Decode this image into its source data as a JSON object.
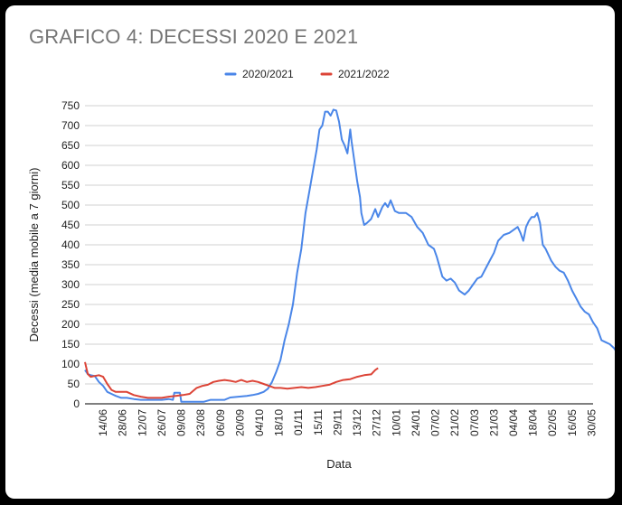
{
  "chart_data": {
    "type": "line",
    "title": "GRAFICO 4: DECESSI 2020 E 2021",
    "xlabel": "Data",
    "ylabel": "Decessi (media mobile a 7 giorni)",
    "ylim": [
      0,
      750
    ],
    "yticks": [
      0,
      50,
      100,
      150,
      200,
      250,
      300,
      350,
      400,
      450,
      500,
      550,
      600,
      650,
      700,
      750
    ],
    "grid": true,
    "legend_position": "top-center",
    "x_start": "01/06",
    "x_end": "30/05",
    "categories": [
      "14/06",
      "28/06",
      "12/07",
      "26/07",
      "09/08",
      "23/08",
      "06/09",
      "20/09",
      "04/10",
      "18/10",
      "01/11",
      "15/11",
      "29/11",
      "13/12",
      "27/12",
      "10/01",
      "24/01",
      "07/02",
      "21/02",
      "07/03",
      "21/03",
      "04/04",
      "18/04",
      "02/05",
      "16/05",
      "30/05"
    ],
    "series": [
      {
        "name": "2020/2021",
        "color": "#4a86e8",
        "points": [
          [
            0,
            85
          ],
          [
            2,
            75
          ],
          [
            4,
            72
          ],
          [
            7,
            70
          ],
          [
            10,
            55
          ],
          [
            13,
            45
          ],
          [
            16,
            30
          ],
          [
            19,
            25
          ],
          [
            22,
            20
          ],
          [
            26,
            15
          ],
          [
            30,
            15
          ],
          [
            35,
            12
          ],
          [
            40,
            10
          ],
          [
            45,
            10
          ],
          [
            50,
            10
          ],
          [
            55,
            10
          ],
          [
            60,
            12
          ],
          [
            63,
            10
          ],
          [
            64,
            28
          ],
          [
            68,
            28
          ],
          [
            69,
            5
          ],
          [
            75,
            5
          ],
          [
            80,
            5
          ],
          [
            85,
            5
          ],
          [
            90,
            10
          ],
          [
            95,
            10
          ],
          [
            100,
            10
          ],
          [
            104,
            16
          ],
          [
            110,
            18
          ],
          [
            116,
            20
          ],
          [
            120,
            22
          ],
          [
            124,
            25
          ],
          [
            128,
            30
          ],
          [
            131,
            38
          ],
          [
            134,
            55
          ],
          [
            137,
            80
          ],
          [
            140,
            110
          ],
          [
            143,
            160
          ],
          [
            146,
            200
          ],
          [
            149,
            250
          ],
          [
            152,
            330
          ],
          [
            155,
            390
          ],
          [
            158,
            480
          ],
          [
            161,
            540
          ],
          [
            164,
            600
          ],
          [
            166,
            640
          ],
          [
            168,
            690
          ],
          [
            170,
            700
          ],
          [
            172,
            735
          ],
          [
            174,
            735
          ],
          [
            176,
            725
          ],
          [
            178,
            740
          ],
          [
            180,
            738
          ],
          [
            182,
            710
          ],
          [
            184,
            665
          ],
          [
            186,
            650
          ],
          [
            188,
            630
          ],
          [
            190,
            690
          ],
          [
            191,
            660
          ],
          [
            193,
            610
          ],
          [
            195,
            560
          ],
          [
            197,
            520
          ],
          [
            198,
            480
          ],
          [
            200,
            450
          ],
          [
            202,
            455
          ],
          [
            205,
            465
          ],
          [
            208,
            490
          ],
          [
            210,
            470
          ],
          [
            213,
            495
          ],
          [
            215,
            505
          ],
          [
            217,
            495
          ],
          [
            219,
            512
          ],
          [
            222,
            485
          ],
          [
            225,
            480
          ],
          [
            230,
            480
          ],
          [
            234,
            470
          ],
          [
            238,
            445
          ],
          [
            242,
            430
          ],
          [
            246,
            400
          ],
          [
            250,
            390
          ],
          [
            252,
            370
          ],
          [
            254,
            345
          ],
          [
            256,
            320
          ],
          [
            259,
            310
          ],
          [
            262,
            315
          ],
          [
            265,
            305
          ],
          [
            268,
            285
          ],
          [
            270,
            280
          ],
          [
            272,
            275
          ],
          [
            275,
            285
          ],
          [
            278,
            300
          ],
          [
            281,
            315
          ],
          [
            284,
            320
          ],
          [
            287,
            340
          ],
          [
            290,
            360
          ],
          [
            293,
            380
          ],
          [
            296,
            410
          ],
          [
            300,
            425
          ],
          [
            304,
            430
          ],
          [
            308,
            440
          ],
          [
            310,
            445
          ],
          [
            312,
            430
          ],
          [
            314,
            410
          ],
          [
            316,
            445
          ],
          [
            318,
            460
          ],
          [
            320,
            470
          ],
          [
            322,
            470
          ],
          [
            324,
            480
          ],
          [
            326,
            455
          ],
          [
            328,
            400
          ],
          [
            330,
            390
          ],
          [
            334,
            360
          ],
          [
            337,
            345
          ],
          [
            340,
            335
          ],
          [
            343,
            330
          ],
          [
            346,
            310
          ],
          [
            349,
            285
          ],
          [
            352,
            265
          ],
          [
            355,
            245
          ],
          [
            358,
            232
          ],
          [
            361,
            225
          ],
          [
            364,
            205
          ],
          [
            367,
            190
          ],
          [
            370,
            160
          ],
          [
            373,
            155
          ],
          [
            376,
            150
          ],
          [
            379,
            140
          ],
          [
            382,
            125
          ],
          [
            384,
            115
          ]
        ]
      },
      {
        "name": "2021/2022",
        "color": "#dc4437",
        "points": [
          [
            0,
            105
          ],
          [
            2,
            75
          ],
          [
            4,
            68
          ],
          [
            7,
            70
          ],
          [
            10,
            72
          ],
          [
            13,
            68
          ],
          [
            16,
            50
          ],
          [
            19,
            35
          ],
          [
            22,
            30
          ],
          [
            26,
            30
          ],
          [
            30,
            30
          ],
          [
            35,
            22
          ],
          [
            40,
            18
          ],
          [
            45,
            15
          ],
          [
            50,
            15
          ],
          [
            55,
            15
          ],
          [
            60,
            18
          ],
          [
            65,
            20
          ],
          [
            70,
            22
          ],
          [
            75,
            25
          ],
          [
            80,
            40
          ],
          [
            84,
            45
          ],
          [
            88,
            48
          ],
          [
            92,
            55
          ],
          [
            96,
            58
          ],
          [
            100,
            60
          ],
          [
            104,
            58
          ],
          [
            108,
            55
          ],
          [
            112,
            60
          ],
          [
            116,
            55
          ],
          [
            120,
            58
          ],
          [
            124,
            55
          ],
          [
            128,
            50
          ],
          [
            132,
            45
          ],
          [
            136,
            40
          ],
          [
            140,
            40
          ],
          [
            145,
            38
          ],
          [
            150,
            40
          ],
          [
            155,
            42
          ],
          [
            160,
            40
          ],
          [
            165,
            42
          ],
          [
            170,
            45
          ],
          [
            175,
            48
          ],
          [
            180,
            55
          ],
          [
            185,
            60
          ],
          [
            190,
            62
          ],
          [
            195,
            68
          ],
          [
            200,
            72
          ],
          [
            205,
            74
          ],
          [
            208,
            85
          ],
          [
            210,
            90
          ]
        ]
      }
    ]
  }
}
